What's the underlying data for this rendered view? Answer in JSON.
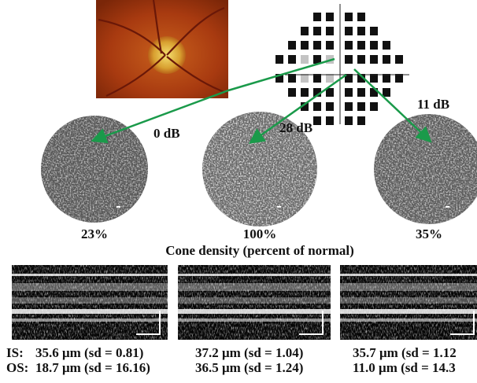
{
  "sensitivity_labels": [
    "0 dB",
    "28 dB",
    "11 dB"
  ],
  "cone_density": {
    "values": [
      "23%",
      "100%",
      "35%"
    ],
    "axis_label": "Cone density (percent of normal)"
  },
  "thickness": {
    "row_labels": [
      "IS:",
      "OS:"
    ],
    "panels": [
      [
        "35.6 μm (sd = 0.81)",
        "18.7 μm (sd = 16.16)"
      ],
      [
        "37.2 μm (sd = 1.04)",
        "36.5 μm (sd = 1.24)"
      ],
      [
        "35.7 μm (sd = 1.12",
        "11.0 μm (sd = 14.3"
      ]
    ]
  }
}
